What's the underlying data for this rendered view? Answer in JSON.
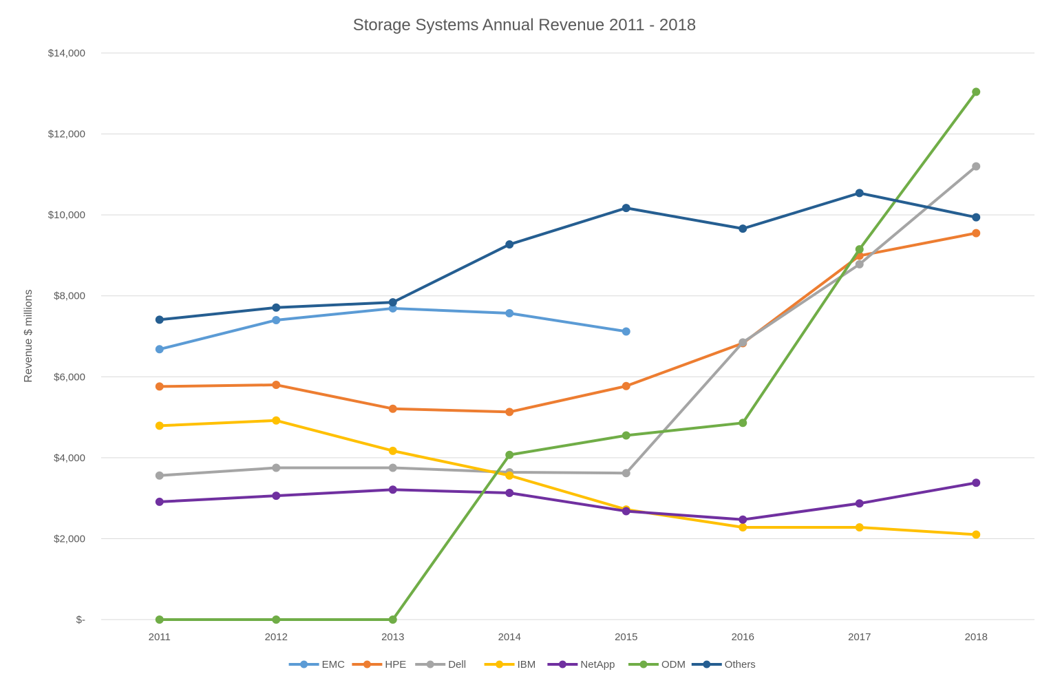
{
  "chart_data": {
    "type": "line",
    "title": "Storage Systems Annual Revenue 2011 - 2018",
    "ylabel": "Revenue $ millions",
    "xlabel": "",
    "categories": [
      "2011",
      "2012",
      "2013",
      "2014",
      "2015",
      "2016",
      "2017",
      "2018"
    ],
    "ylim": [
      0,
      14000
    ],
    "yticks": [
      0,
      2000,
      4000,
      6000,
      8000,
      10000,
      12000,
      14000
    ],
    "ytick_labels": [
      "$-",
      "$2,000",
      "$4,000",
      "$6,000",
      "$8,000",
      "$10,000",
      "$12,000",
      "$14,000"
    ],
    "grid": true,
    "legend_position": "bottom",
    "series": [
      {
        "name": "EMC",
        "color": "#5b9bd5",
        "values": [
          6680,
          7400,
          7690,
          7570,
          7120,
          null,
          null,
          null
        ]
      },
      {
        "name": "HPE",
        "color": "#ed7d31",
        "values": [
          5760,
          5800,
          5210,
          5130,
          5770,
          6830,
          8990,
          9550
        ]
      },
      {
        "name": "Dell",
        "color": "#a5a5a5",
        "values": [
          3560,
          3750,
          3750,
          3640,
          3620,
          6850,
          8780,
          11200
        ]
      },
      {
        "name": "IBM",
        "color": "#ffc000",
        "values": [
          4790,
          4920,
          4170,
          3560,
          2720,
          2280,
          2280,
          2100
        ]
      },
      {
        "name": "NetApp",
        "color": "#7030a0",
        "values": [
          2910,
          3060,
          3210,
          3130,
          2680,
          2470,
          2870,
          3380
        ]
      },
      {
        "name": "ODM",
        "color": "#70ad47",
        "values": [
          0,
          0,
          0,
          4070,
          4550,
          4860,
          9150,
          13040
        ]
      },
      {
        "name": "Others",
        "color": "#255e91",
        "values": [
          7410,
          7710,
          7840,
          9270,
          10170,
          9660,
          10540,
          9940
        ]
      }
    ]
  }
}
